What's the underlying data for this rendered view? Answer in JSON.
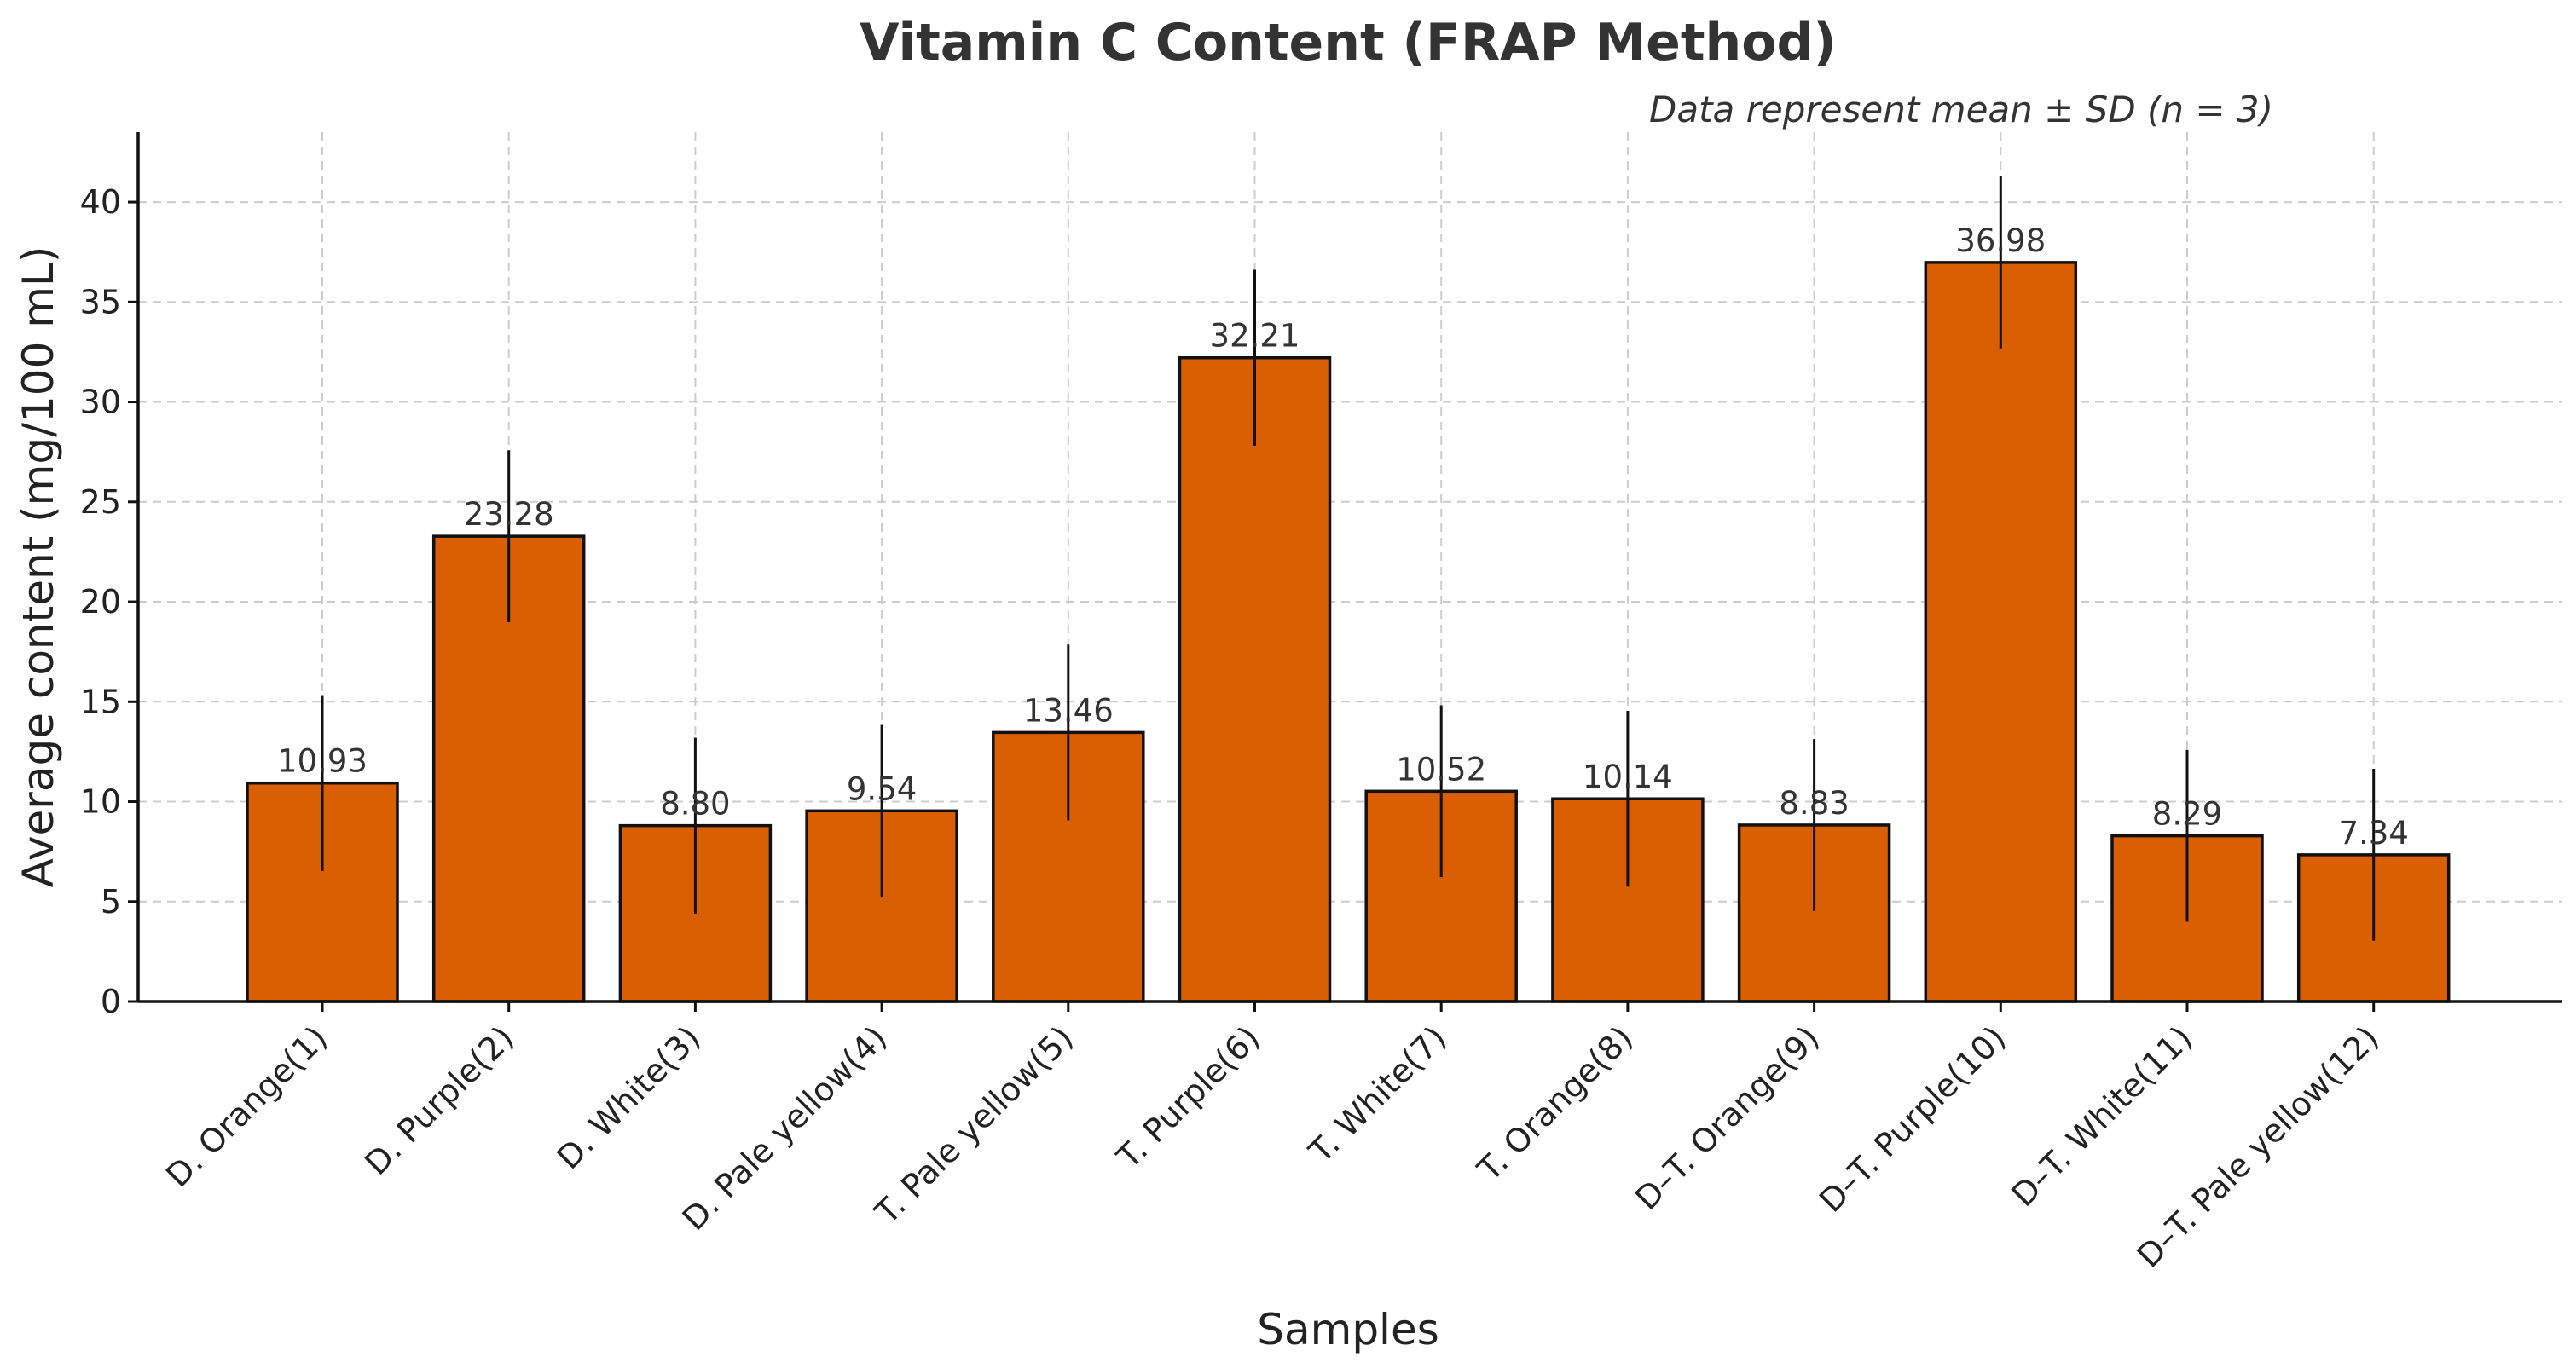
{
  "chart_data": {
    "type": "bar",
    "title": "Vitamin C Content (FRAP Method)",
    "annotation": "Data represent mean ± SD (n = 3)",
    "xlabel": "Samples",
    "ylabel": "Average content (mg/100 mL)",
    "ylim": [
      0,
      43.5
    ],
    "yticks": [
      0,
      5,
      10,
      15,
      20,
      25,
      30,
      35,
      40
    ],
    "grid": true,
    "bar_color": "#d95f02",
    "categories": [
      "D. Orange(1)",
      "D. Purple(2)",
      "D. White(3)",
      "D. Pale yellow(4)",
      "T. Pale yellow(5)",
      "T. Purple(6)",
      "T. White(7)",
      "T. Orange(8)",
      "D–T. Orange(9)",
      "D–T. Purple(10)",
      "D–T. White(11)",
      "D–T. Pale yellow(12)"
    ],
    "values": [
      10.93,
      23.28,
      8.8,
      9.54,
      13.46,
      32.21,
      10.52,
      10.14,
      8.83,
      36.98,
      8.29,
      7.34
    ],
    "value_labels": [
      "10.93",
      "23.28",
      "8.80",
      "9.54",
      "13.46",
      "32.21",
      "10.52",
      "10.14",
      "8.83",
      "36.98",
      "8.29",
      "7.34"
    ],
    "errors": [
      4.4,
      4.3,
      4.4,
      4.3,
      4.4,
      4.4,
      4.3,
      4.4,
      4.3,
      4.3,
      4.3,
      4.3
    ]
  }
}
